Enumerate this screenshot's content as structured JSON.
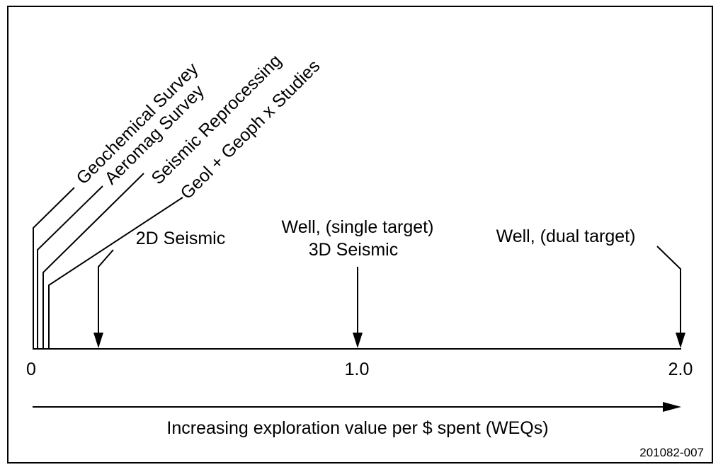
{
  "diagram": {
    "rotated_labels": [
      "Geochemical Survey",
      "Aeromag Survey",
      "Seismic Reprocessing",
      "Geol + Geoph x Studies"
    ],
    "labels": {
      "seismic_2d": "2D Seismic",
      "well_single_line1": "Well, (single target)",
      "well_single_line2": "3D Seismic",
      "well_dual": "Well, (dual target)"
    },
    "ticks": [
      "0",
      "1.0",
      "2.0"
    ],
    "axis_caption": "Increasing exploration value per $ spent (WEQs)",
    "figure_id": "201082-007"
  }
}
